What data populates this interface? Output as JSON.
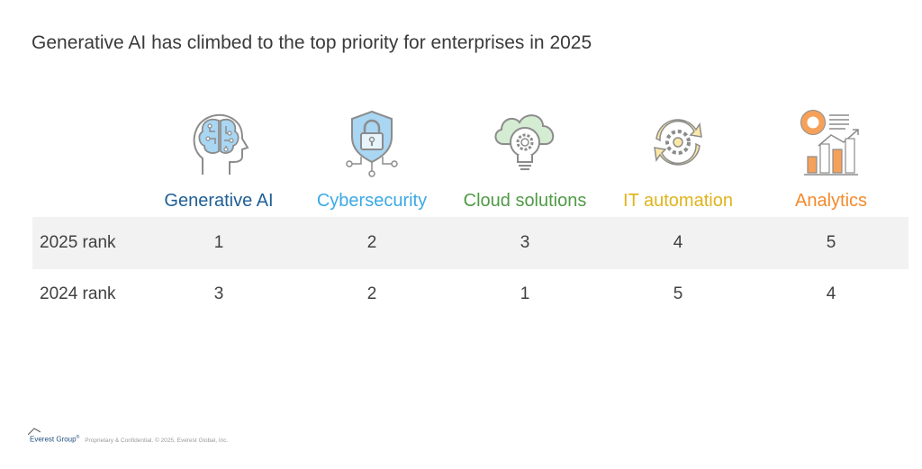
{
  "title": "Generative AI has climbed to the top priority for enterprises in 2025",
  "columns": [
    {
      "label": "Generative AI",
      "icon": "brain-circuit-head-icon",
      "color": "#1f5f96"
    },
    {
      "label": "Cybersecurity",
      "icon": "shield-lock-icon",
      "color": "#3ba9e6"
    },
    {
      "label": "Cloud solutions",
      "icon": "cloud-gear-lightbulb-icon",
      "color": "#4f9a45"
    },
    {
      "label": "IT automation",
      "icon": "gear-cycle-arrows-icon",
      "color": "#e0b41c"
    },
    {
      "label": "Analytics",
      "icon": "analytics-chart-icon",
      "color": "#f38a2c"
    }
  ],
  "rows": [
    {
      "label": "2025 rank",
      "values": [
        "1",
        "2",
        "3",
        "4",
        "5"
      ]
    },
    {
      "label": "2024 rank",
      "values": [
        "3",
        "2",
        "1",
        "5",
        "4"
      ]
    }
  ],
  "footer": {
    "logo": "Everest Group",
    "logo_mark": "®",
    "text": "Proprietary & Confidential. © 2025, Everest Global, Inc."
  }
}
